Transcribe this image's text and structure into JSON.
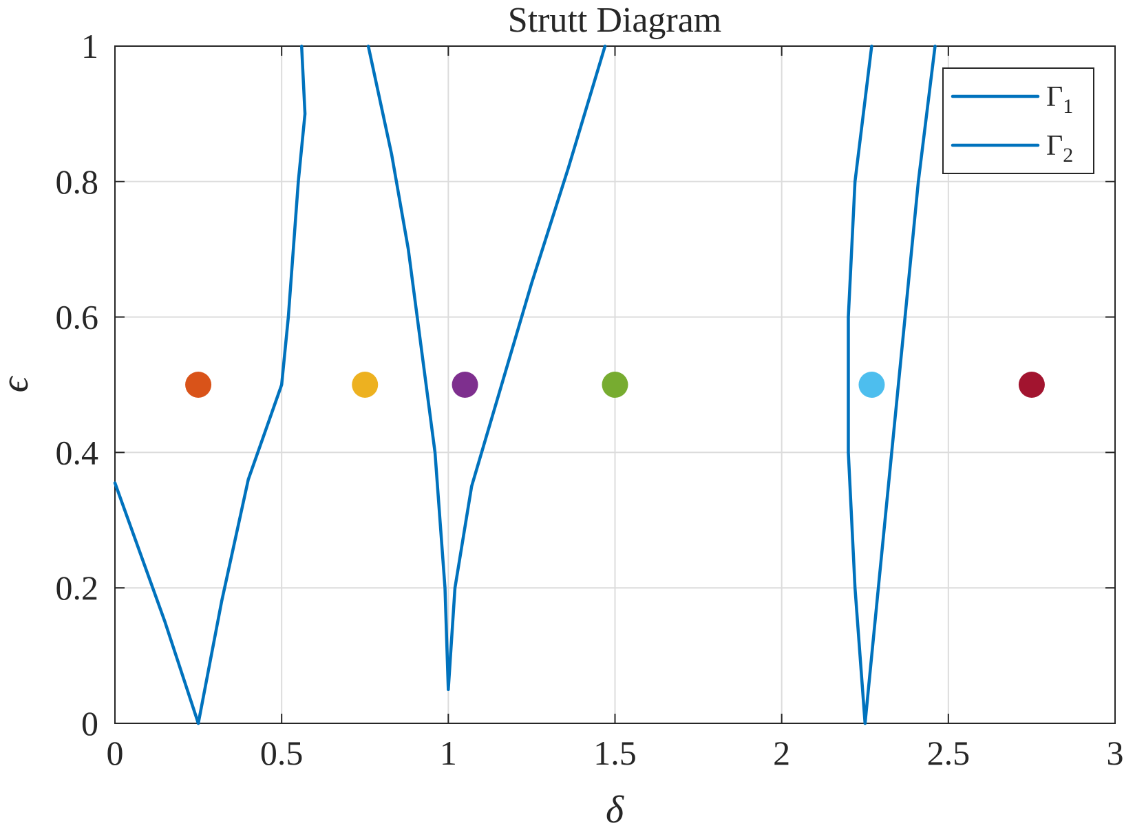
{
  "chart_data": {
    "type": "line",
    "title": "Strutt Diagram",
    "xlabel": "δ",
    "ylabel": "ϵ",
    "xlim": [
      0,
      3
    ],
    "ylim": [
      0,
      1
    ],
    "xticks": [
      "0",
      "0.5",
      "1",
      "1.5",
      "2",
      "2.5",
      "3"
    ],
    "yticks": [
      "0",
      "0.2",
      "0.4",
      "0.6",
      "0.8",
      "1"
    ],
    "grid": true,
    "legend": {
      "placement": "top-right",
      "entries": [
        {
          "main": "Γ",
          "sub": "1"
        },
        {
          "main": "Γ",
          "sub": "2"
        }
      ]
    },
    "colors": {
      "curve": "#0072BD",
      "axis": "#262626",
      "grid": "#dcdcdc"
    },
    "series": [
      {
        "name": "Γ1",
        "color": "#0072BD",
        "segments": [
          [
            [
              0.0,
              0.355
            ],
            [
              0.15,
              0.15
            ],
            [
              0.25,
              0.0
            ]
          ],
          [
            [
              0.25,
              0.0
            ],
            [
              0.32,
              0.18
            ],
            [
              0.4,
              0.36
            ],
            [
              0.5,
              0.5
            ],
            [
              0.52,
              0.6
            ],
            [
              0.55,
              0.8
            ],
            [
              0.57,
              0.9
            ],
            [
              0.56,
              1.0
            ]
          ],
          [
            [
              0.76,
              1.0
            ],
            [
              0.83,
              0.84
            ],
            [
              0.88,
              0.7
            ],
            [
              0.92,
              0.55
            ],
            [
              0.96,
              0.4
            ],
            [
              0.99,
              0.2
            ],
            [
              1.0,
              0.05
            ]
          ],
          [
            [
              1.0,
              0.05
            ],
            [
              1.02,
              0.2
            ],
            [
              1.07,
              0.35
            ],
            [
              1.16,
              0.5
            ],
            [
              1.25,
              0.65
            ],
            [
              1.36,
              0.82
            ],
            [
              1.47,
              1.0
            ]
          ]
        ]
      },
      {
        "name": "Γ2",
        "color": "#0072BD",
        "segments": [
          [
            [
              2.25,
              0.0
            ],
            [
              2.22,
              0.2
            ],
            [
              2.2,
              0.4
            ],
            [
              2.2,
              0.6
            ],
            [
              2.22,
              0.8
            ],
            [
              2.27,
              1.0
            ]
          ],
          [
            [
              2.25,
              0.0
            ],
            [
              2.29,
              0.2
            ],
            [
              2.33,
              0.4
            ],
            [
              2.37,
              0.6
            ],
            [
              2.41,
              0.8
            ],
            [
              2.46,
              1.0
            ]
          ]
        ]
      },
      {
        "name": "points",
        "type": "scatter",
        "points": [
          {
            "x": 0.25,
            "y": 0.5,
            "color": "#D95319"
          },
          {
            "x": 0.75,
            "y": 0.5,
            "color": "#EDB120"
          },
          {
            "x": 1.05,
            "y": 0.5,
            "color": "#7E2F8E"
          },
          {
            "x": 1.5,
            "y": 0.5,
            "color": "#77AC30"
          },
          {
            "x": 2.27,
            "y": 0.5,
            "color": "#4DBEEE"
          },
          {
            "x": 2.75,
            "y": 0.5,
            "color": "#A2142F"
          }
        ]
      }
    ]
  }
}
